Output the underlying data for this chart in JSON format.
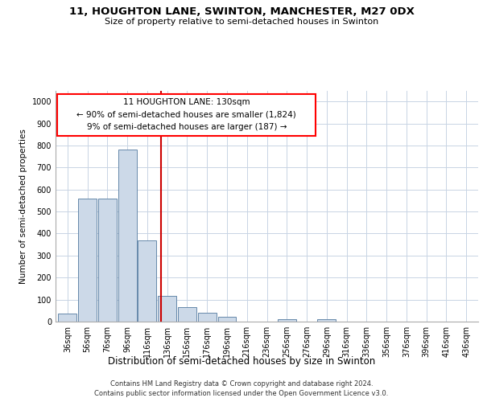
{
  "title1": "11, HOUGHTON LANE, SWINTON, MANCHESTER, M27 0DX",
  "title2": "Size of property relative to semi-detached houses in Swinton",
  "xlabel": "Distribution of semi-detached houses by size in Swinton",
  "ylabel": "Number of semi-detached properties",
  "annotation_line1": "11 HOUGHTON LANE: 130sqm",
  "annotation_line2": "← 90% of semi-detached houses are smaller (1,824)",
  "annotation_line3": "9% of semi-detached houses are larger (187) →",
  "footer1": "Contains HM Land Registry data © Crown copyright and database right 2024.",
  "footer2": "Contains public sector information licensed under the Open Government Licence v3.0.",
  "bar_color": "#ccd9e8",
  "bar_edgecolor": "#6688aa",
  "vline_color": "#cc0000",
  "vline_x": 130,
  "categories": [
    36,
    56,
    76,
    96,
    116,
    136,
    156,
    176,
    196,
    216,
    236,
    256,
    276,
    296,
    316,
    336,
    356,
    376,
    396,
    416,
    436
  ],
  "values": [
    38,
    558,
    558,
    782,
    370,
    118,
    65,
    42,
    22,
    0,
    0,
    10,
    0,
    12,
    0,
    0,
    0,
    0,
    0,
    0,
    0
  ],
  "ylim": [
    0,
    1050
  ],
  "yticks": [
    0,
    100,
    200,
    300,
    400,
    500,
    600,
    700,
    800,
    900,
    1000
  ],
  "bin_width": 20,
  "grid_color": "#c8d4e4",
  "title1_fontsize": 9.5,
  "title2_fontsize": 8.0,
  "ylabel_fontsize": 7.5,
  "xlabel_fontsize": 8.5,
  "tick_fontsize": 7.0,
  "annot_fontsize": 7.5,
  "footer_fontsize": 6.0
}
